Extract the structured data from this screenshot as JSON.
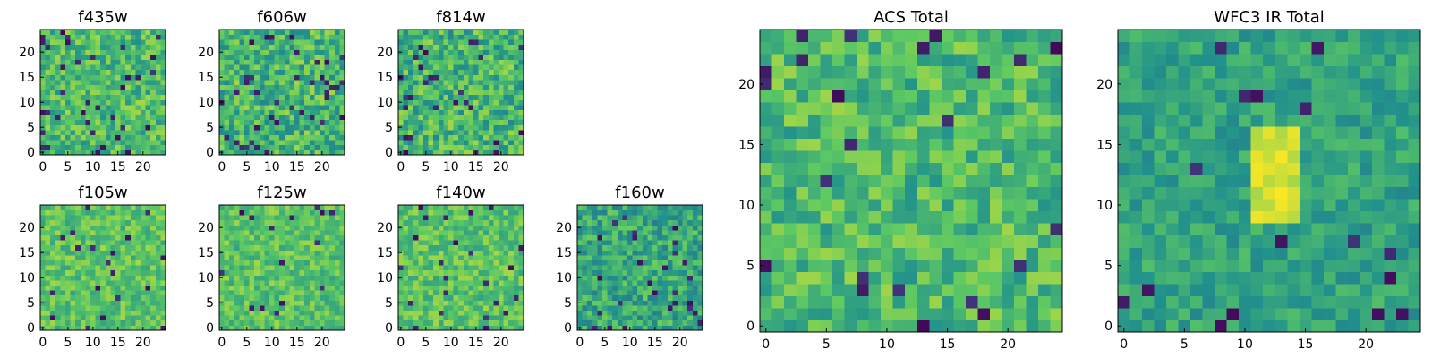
{
  "figure": {
    "colormap": "viridis",
    "colormap_stops": [
      "#440154",
      "#3b528b",
      "#21918c",
      "#5ec962",
      "#fde725"
    ]
  },
  "chart_data": [
    {
      "type": "heatmap",
      "title": "f435w",
      "grid_size": [
        25,
        25
      ],
      "xlim": [
        0,
        24
      ],
      "ylim": [
        0,
        24
      ],
      "xticks": [
        0,
        5,
        10,
        15,
        20
      ],
      "yticks": [
        0,
        5,
        10,
        15,
        20
      ],
      "values_note": "per-pixel noise values not individually legible; mostly mid-high (green/yellow) with scattered dark pixels",
      "value_distribution": {
        "mean": 0.68,
        "spread": 0.18,
        "dark_fraction": 0.05
      },
      "seed": 11
    },
    {
      "type": "heatmap",
      "title": "f606w",
      "grid_size": [
        25,
        25
      ],
      "xlim": [
        0,
        24
      ],
      "ylim": [
        0,
        24
      ],
      "xticks": [
        0,
        5,
        10,
        15,
        20
      ],
      "yticks": [
        0,
        5,
        10,
        15,
        20
      ],
      "value_distribution": {
        "mean": 0.66,
        "spread": 0.2,
        "dark_fraction": 0.05
      },
      "seed": 23
    },
    {
      "type": "heatmap",
      "title": "f814w",
      "grid_size": [
        25,
        25
      ],
      "xlim": [
        0,
        24
      ],
      "ylim": [
        0,
        24
      ],
      "xticks": [
        0,
        5,
        10,
        15,
        20
      ],
      "yticks": [
        0,
        5,
        10,
        15,
        20
      ],
      "value_distribution": {
        "mean": 0.66,
        "spread": 0.2,
        "dark_fraction": 0.05
      },
      "seed": 37
    },
    {
      "type": "heatmap",
      "title": "f105w",
      "grid_size": [
        25,
        25
      ],
      "xlim": [
        0,
        24
      ],
      "ylim": [
        0,
        24
      ],
      "xticks": [
        0,
        5,
        10,
        15,
        20
      ],
      "yticks": [
        0,
        5,
        10,
        15,
        20
      ],
      "value_distribution": {
        "mean": 0.72,
        "spread": 0.14,
        "dark_fraction": 0.03
      },
      "seed": 41
    },
    {
      "type": "heatmap",
      "title": "f125w",
      "grid_size": [
        25,
        25
      ],
      "xlim": [
        0,
        24
      ],
      "ylim": [
        0,
        24
      ],
      "xticks": [
        0,
        5,
        10,
        15,
        20
      ],
      "yticks": [
        0,
        5,
        10,
        15,
        20
      ],
      "value_distribution": {
        "mean": 0.72,
        "spread": 0.14,
        "dark_fraction": 0.03
      },
      "seed": 53
    },
    {
      "type": "heatmap",
      "title": "f140w",
      "grid_size": [
        25,
        25
      ],
      "xlim": [
        0,
        24
      ],
      "ylim": [
        0,
        24
      ],
      "xticks": [
        0,
        5,
        10,
        15,
        20
      ],
      "yticks": [
        0,
        5,
        10,
        15,
        20
      ],
      "value_distribution": {
        "mean": 0.72,
        "spread": 0.14,
        "dark_fraction": 0.03
      },
      "seed": 67
    },
    {
      "type": "heatmap",
      "title": "f160w",
      "grid_size": [
        25,
        25
      ],
      "xlim": [
        0,
        24
      ],
      "ylim": [
        0,
        24
      ],
      "xticks": [
        0,
        5,
        10,
        15,
        20
      ],
      "yticks": [
        0,
        5,
        10,
        15,
        20
      ],
      "value_distribution": {
        "mean": 0.6,
        "spread": 0.18,
        "dark_fraction": 0.05
      },
      "seed": 79
    },
    {
      "type": "heatmap",
      "title": "ACS Total",
      "grid_size": [
        25,
        25
      ],
      "xlim": [
        0,
        24
      ],
      "ylim": [
        0,
        24
      ],
      "xticks": [
        0,
        5,
        10,
        15,
        20
      ],
      "yticks": [
        0,
        5,
        10,
        15,
        20
      ],
      "value_distribution": {
        "mean": 0.68,
        "spread": 0.17,
        "dark_fraction": 0.04
      },
      "seed": 97
    },
    {
      "type": "heatmap",
      "title": "WFC3 IR Total",
      "grid_size": [
        25,
        25
      ],
      "xlim": [
        0,
        24
      ],
      "ylim": [
        0,
        24
      ],
      "xticks": [
        0,
        5,
        10,
        15,
        20
      ],
      "yticks": [
        0,
        5,
        10,
        15,
        20
      ],
      "value_distribution": {
        "mean": 0.58,
        "spread": 0.12,
        "dark_fraction": 0.03
      },
      "bright_region": {
        "x": [
          11,
          14
        ],
        "y": [
          9,
          16
        ]
      },
      "seed": 113
    }
  ]
}
